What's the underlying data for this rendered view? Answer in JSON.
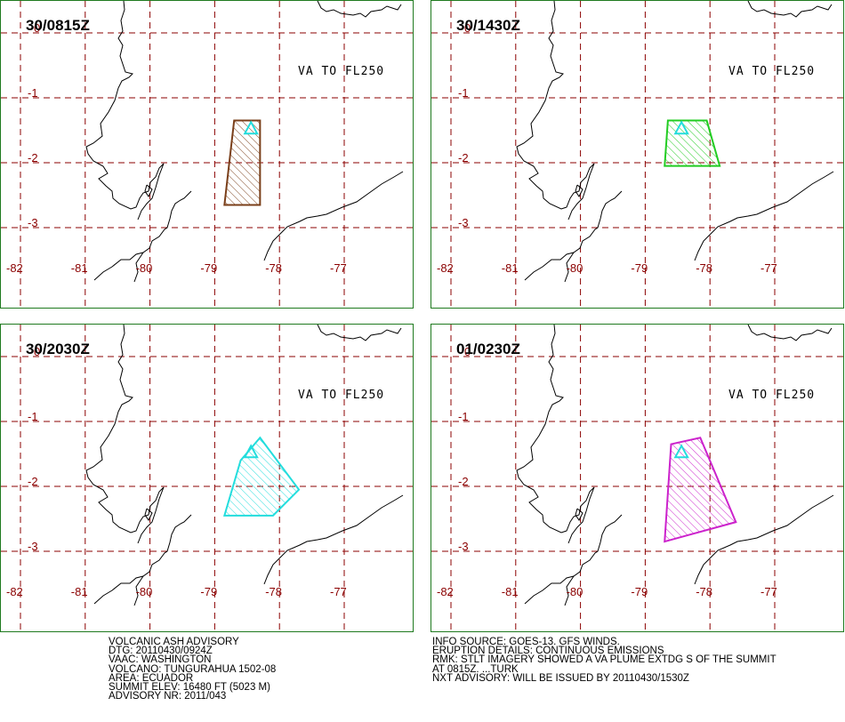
{
  "panels": [
    {
      "time": "30/0815Z",
      "label": "VA TO FL250",
      "poly_color": "#7a3f1a",
      "polygon": [
        [
          -78.7,
          -1.35
        ],
        [
          -78.3,
          -1.35
        ],
        [
          -78.3,
          -2.65
        ],
        [
          -78.85,
          -2.65
        ]
      ]
    },
    {
      "time": "30/1430Z",
      "label": "VA TO FL250",
      "poly_color": "#22cc22",
      "polygon": [
        [
          -78.65,
          -1.35
        ],
        [
          -78.05,
          -1.35
        ],
        [
          -77.85,
          -2.05
        ],
        [
          -78.7,
          -2.05
        ]
      ]
    },
    {
      "time": "30/2030Z",
      "label": "VA TO FL250",
      "poly_color": "#22dddd",
      "polygon": [
        [
          -78.6,
          -1.6
        ],
        [
          -78.3,
          -1.25
        ],
        [
          -77.7,
          -2.05
        ],
        [
          -78.1,
          -2.45
        ],
        [
          -78.6,
          -2.45
        ],
        [
          -78.85,
          -2.45
        ]
      ]
    },
    {
      "time": "01/0230Z",
      "label": "VA TO FL250",
      "poly_color": "#cc22cc",
      "polygon": [
        [
          -78.6,
          -1.35
        ],
        [
          -78.15,
          -1.25
        ],
        [
          -77.6,
          -2.55
        ],
        [
          -78.7,
          -2.85
        ]
      ]
    }
  ],
  "map": {
    "lon_labels": [
      "-82",
      "-81",
      "-80",
      "-79",
      "-78",
      "-77"
    ],
    "lat_labels": [
      "0",
      "-1",
      "-2",
      "-3"
    ],
    "volcano": {
      "lon": -78.44,
      "lat": -1.47
    },
    "grid_color": "#8b0000",
    "coast_color": "#000000",
    "border_color": "#1f7a1f"
  },
  "advisory_left": [
    "VOLCANIC ASH ADVISORY",
    "DTG: 20110430/0924Z",
    "VAAC: WASHINGTON",
    "VOLCANO: TUNGURAHUA 1502-08",
    "AREA: ECUADOR",
    "SUMMIT ELEV: 16480 FT (5023 M)",
    "ADVISORY NR: 2011/043"
  ],
  "advisory_right": [
    "INFO SOURCE: GOES-13. GFS WINDS.",
    "ERUPTION DETAILS: CONTINUOUS EMISSIONS",
    "RMK: STLT IMAGERY SHOWED A VA PLUME EXTDG S OF THE SUMMIT",
    "AT 0815Z.  ...TURK",
    "NXT ADVISORY: WILL BE ISSUED BY 20110430/1530Z"
  ]
}
